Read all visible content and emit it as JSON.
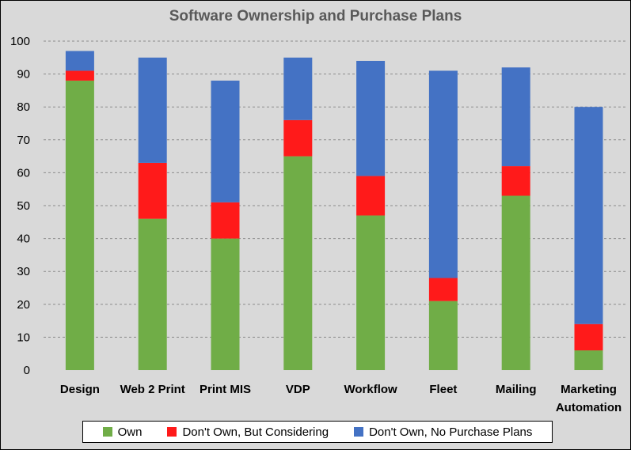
{
  "chart_data": {
    "type": "bar",
    "stacked": true,
    "title": "Software Ownership and Purchase Plans",
    "categories": [
      "Design",
      "Web 2 Print",
      "Print MIS",
      "VDP",
      "Workflow",
      "Fleet",
      "Mailing",
      "Marketing Automation"
    ],
    "category_lines": [
      [
        "Design"
      ],
      [
        "Web 2 Print"
      ],
      [
        "Print MIS"
      ],
      [
        "VDP"
      ],
      [
        "Workflow"
      ],
      [
        "Fleet"
      ],
      [
        "Mailing"
      ],
      [
        "Marketing",
        "Automation"
      ]
    ],
    "series": [
      {
        "name": "Own",
        "color": "#70ad47",
        "values": [
          88,
          46,
          40,
          65,
          47,
          21,
          53,
          6
        ]
      },
      {
        "name": "Don't Own, But Considering",
        "color": "#ff1a1a",
        "values": [
          3,
          17,
          11,
          11,
          12,
          7,
          9,
          8
        ]
      },
      {
        "name": "Don't Own, No Purchase Plans",
        "color": "#4472c4",
        "values": [
          6,
          32,
          37,
          19,
          35,
          63,
          30,
          66
        ]
      }
    ],
    "ylim": [
      0,
      100
    ],
    "yticks": [
      0,
      10,
      20,
      30,
      40,
      50,
      60,
      70,
      80,
      90,
      100
    ],
    "grid": true,
    "legend_position": "bottom"
  }
}
